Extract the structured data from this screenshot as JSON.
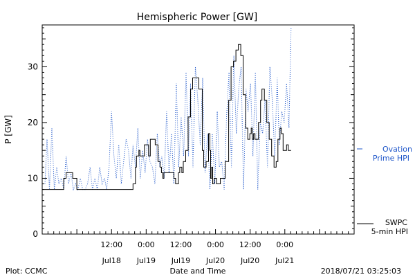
{
  "chart_data": {
    "type": "line",
    "title": "Hemispheric Power [GW]",
    "xlabel": "Date and Time",
    "ylabel": "P [GW]",
    "ylim": [
      0,
      37.5
    ],
    "xlim": [
      -8.0,
      1.0
    ],
    "yticks": [
      0,
      10,
      20,
      30
    ],
    "xticks": [
      {
        "x": -6.0,
        "time": "12:00",
        "date": "Jul18"
      },
      {
        "x": -5.0,
        "time": "0:00",
        "date": "Jul19"
      },
      {
        "x": -4.0,
        "time": "12:00",
        "date": "Jul19"
      },
      {
        "x": -3.0,
        "time": "0:00",
        "date": "Jul20"
      },
      {
        "x": -2.0,
        "time": "12:00",
        "date": "Jul20"
      },
      {
        "x": -1.0,
        "time": "0:00",
        "date": "Jul21"
      }
    ],
    "x_axis_note": "x values are the axis position in tick-label units; each tick step is 12 hours",
    "series": [
      {
        "name": "SWPC",
        "color": "#000000",
        "style": "solid",
        "x": [
          -8.0,
          -7.72,
          -7.55,
          -7.38,
          -7.31,
          -7.2,
          -7.12,
          -7.0,
          -6.8,
          -6.2,
          -5.6,
          -5.4,
          -5.38,
          -5.31,
          -5.28,
          -5.21,
          -5.18,
          -5.1,
          -5.05,
          -4.99,
          -4.93,
          -4.88,
          -4.82,
          -4.74,
          -4.66,
          -4.6,
          -4.56,
          -4.52,
          -4.49,
          -4.42,
          -4.3,
          -4.2,
          -4.15,
          -4.07,
          -4.03,
          -3.97,
          -3.93,
          -3.86,
          -3.79,
          -3.72,
          -3.66,
          -3.58,
          -3.48,
          -3.38,
          -3.34,
          -3.27,
          -3.2,
          -3.16,
          -3.14,
          -3.11,
          -3.08,
          -3.04,
          -2.97,
          -2.93,
          -2.86,
          -2.8,
          -2.72,
          -2.62,
          -2.55,
          -2.48,
          -2.41,
          -2.34,
          -2.27,
          -2.2,
          -2.13,
          -2.07,
          -2.01,
          -1.97,
          -1.94,
          -1.9,
          -1.86,
          -1.76,
          -1.7,
          -1.66,
          -1.59,
          -1.52,
          -1.45,
          -1.38,
          -1.31,
          -1.25,
          -1.2,
          -1.14,
          -1.1,
          -1.05,
          -1.0,
          -0.95,
          -0.93,
          -0.9,
          -0.86,
          -0.82
        ],
        "values": [
          8,
          8,
          8,
          10,
          11,
          11,
          10,
          8,
          8,
          8,
          8,
          8,
          9,
          12,
          14,
          15,
          14,
          14,
          16,
          16,
          14,
          17,
          17,
          16,
          13,
          12,
          11,
          10,
          11,
          11,
          11,
          10,
          9,
          11,
          12,
          11,
          13,
          15,
          21,
          26,
          28,
          28,
          26,
          15,
          12,
          13,
          18,
          15,
          10,
          12,
          9,
          10,
          9,
          9,
          10,
          10,
          13,
          24,
          30,
          31,
          33,
          34,
          32,
          25,
          19,
          17,
          18,
          19,
          17,
          18,
          17,
          20,
          24,
          26,
          24,
          20,
          17,
          14,
          12,
          13,
          17,
          19,
          18,
          15,
          15,
          16,
          16,
          15,
          15,
          15
        ]
      },
      {
        "name": "Ovation Prime HPI",
        "color": "#1d55c9",
        "style": "dotted",
        "x": [
          -7.92,
          -7.86,
          -7.79,
          -7.72,
          -7.65,
          -7.58,
          -7.52,
          -7.45,
          -7.38,
          -7.31,
          -7.24,
          -7.17,
          -7.1,
          -7.03,
          -6.97,
          -6.9,
          -6.83,
          -6.76,
          -6.69,
          -6.62,
          -6.55,
          -6.48,
          -6.41,
          -6.34,
          -6.27,
          -6.2,
          -6.14,
          -6.07,
          -6.0,
          -5.93,
          -5.86,
          -5.79,
          -5.72,
          -5.65,
          -5.58,
          -5.51,
          -5.44,
          -5.38,
          -5.31,
          -5.24,
          -5.17,
          -5.1,
          -5.03,
          -4.96,
          -4.89,
          -4.82,
          -4.75,
          -4.68,
          -4.61,
          -4.55,
          -4.48,
          -4.41,
          -4.34,
          -4.27,
          -4.2,
          -4.13,
          -4.06,
          -3.99,
          -3.92,
          -3.85,
          -3.78,
          -3.72,
          -3.65,
          -3.58,
          -3.51,
          -3.44,
          -3.37,
          -3.3,
          -3.23,
          -3.16,
          -3.09,
          -3.02,
          -2.95,
          -2.89,
          -2.82,
          -2.75,
          -2.68,
          -2.61,
          -2.54,
          -2.47,
          -2.4,
          -2.33,
          -2.26,
          -2.19,
          -2.12,
          -2.06,
          -1.99,
          -1.92,
          -1.85,
          -1.78,
          -1.71,
          -1.64,
          -1.57,
          -1.5,
          -1.43,
          -1.36,
          -1.29,
          -1.22,
          -1.16,
          -1.09,
          -1.02,
          -0.95,
          -0.88,
          -0.82
        ],
        "values": [
          9,
          17,
          8,
          19,
          8,
          12,
          9,
          10,
          8,
          14,
          9,
          11,
          8,
          9,
          8,
          10,
          8,
          8,
          9,
          12,
          8,
          10,
          8,
          12,
          9,
          10,
          8,
          12,
          22,
          14,
          10,
          16,
          9,
          13,
          17,
          15,
          10,
          16,
          12,
          19,
          10,
          15,
          11,
          17,
          13,
          12,
          9,
          18,
          12,
          14,
          10,
          22,
          11,
          18,
          9,
          27,
          12,
          21,
          14,
          29,
          14,
          27,
          12,
          30,
          24,
          16,
          28,
          11,
          18,
          8,
          18,
          9,
          22,
          12,
          13,
          8,
          21,
          29,
          12,
          32,
          18,
          26,
          30,
          8,
          26,
          22,
          27,
          14,
          29,
          8,
          20,
          18,
          24,
          12,
          30,
          24,
          14,
          28,
          16,
          22,
          20,
          27,
          19,
          37
        ]
      }
    ],
    "legend": {
      "position": "right",
      "entries": [
        "Ovation Prime HPI",
        "SWPC 5-min HPI"
      ]
    },
    "legend_text": {
      "ovation_line1": "Ovation",
      "ovation_line2": "Prime HPI",
      "swpc_line1": "SWPC",
      "swpc_line2": "5-min HPI"
    },
    "grid": false
  },
  "footer": {
    "left": "Plot: CCMC",
    "right": "2018/07/21 03:25:03"
  }
}
